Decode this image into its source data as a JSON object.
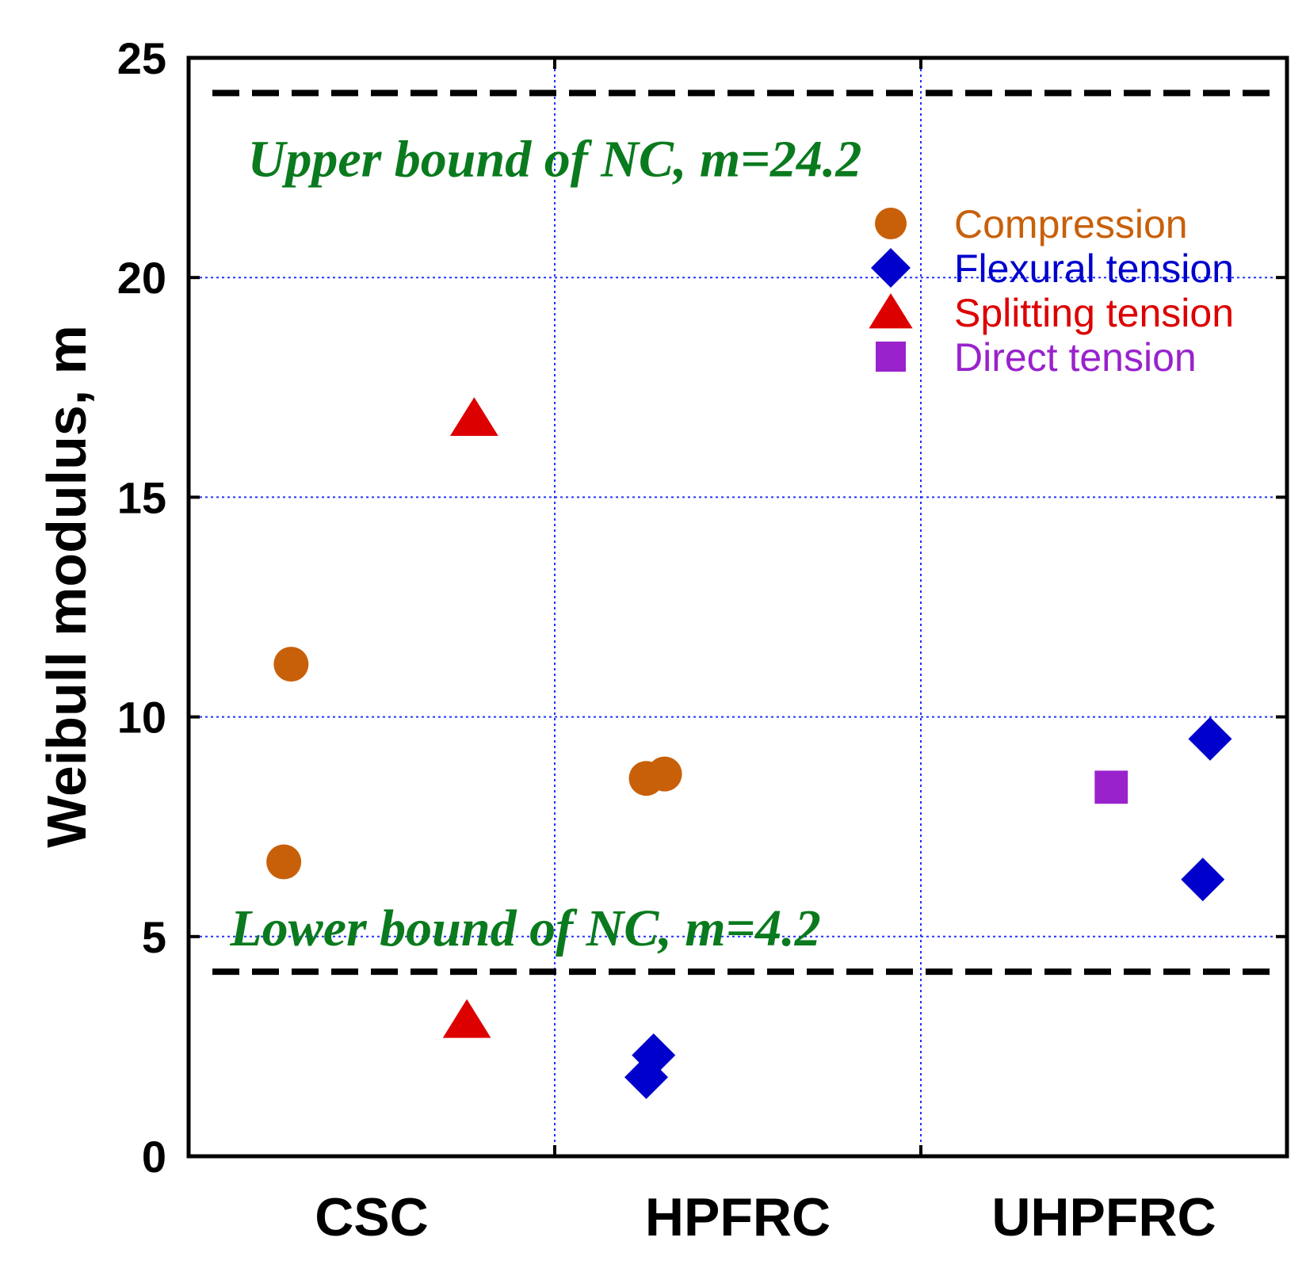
{
  "chart_data": {
    "type": "scatter",
    "title": "",
    "xlabel": "",
    "ylabel": "Weibull modulus, m",
    "ylim": [
      0,
      25
    ],
    "yticks": [
      0,
      5,
      10,
      15,
      20,
      25
    ],
    "categories": [
      "CSC",
      "HPFRC",
      "UHPFRC"
    ],
    "grid": true,
    "legend_position": "top-right",
    "series": [
      {
        "name": "Compression",
        "marker": "circle",
        "color": "#c8600a",
        "points": [
          {
            "x": 0.28,
            "y": 11.2
          },
          {
            "x": 0.26,
            "y": 6.7
          },
          {
            "x": 1.25,
            "y": 8.6
          },
          {
            "x": 1.3,
            "y": 8.7
          }
        ]
      },
      {
        "name": "Flexural tension",
        "marker": "diamond",
        "color": "#0000cc",
        "points": [
          {
            "x": 1.25,
            "y": 1.8
          },
          {
            "x": 1.27,
            "y": 2.3
          },
          {
            "x": 2.79,
            "y": 9.5
          },
          {
            "x": 2.77,
            "y": 6.3
          }
        ]
      },
      {
        "name": "Splitting tension",
        "marker": "triangle",
        "color": "#dd0000",
        "points": [
          {
            "x": 0.78,
            "y": 16.8
          },
          {
            "x": 0.76,
            "y": 3.1
          }
        ]
      },
      {
        "name": "Direct tension",
        "marker": "square",
        "color": "#9922cc",
        "points": [
          {
            "x": 2.52,
            "y": 8.4
          }
        ]
      }
    ],
    "reference_lines": [
      {
        "y": 24.2,
        "label": "Upper bound of NC, m=24.2",
        "label_y": 22.3,
        "label_x": 1.0,
        "color": "#0a7a1e"
      },
      {
        "y": 4.2,
        "label": "Lower bound of NC, m=4.2",
        "label_y": 4.8,
        "label_x": 0.92,
        "color": "#0a7a1e"
      }
    ]
  }
}
